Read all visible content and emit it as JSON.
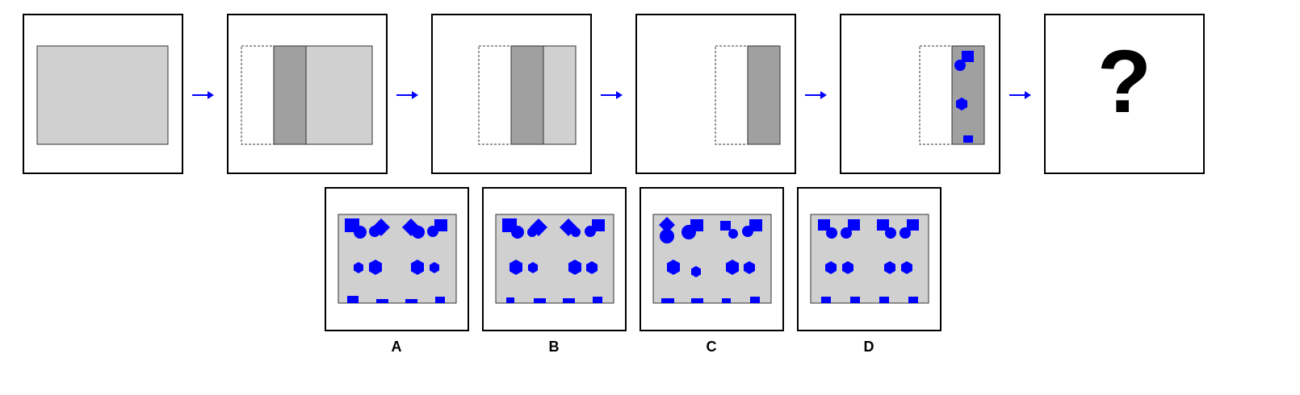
{
  "question_mark": "?",
  "colors": {
    "panel": "#d0d0d0",
    "strip": "#a0a0a0",
    "shape": "#0000ff",
    "arrow": "#0000ff"
  },
  "sequence": [
    {
      "step": 1,
      "desc_icon": "full-gray-panel"
    },
    {
      "step": 2,
      "desc_icon": "panel-with-dashed-left-dark-strip-light-right"
    },
    {
      "step": 3,
      "desc_icon": "panel-dashed-left-dark-strip-narrow-light"
    },
    {
      "step": 4,
      "desc_icon": "panel-dashed-left-dark-strip"
    },
    {
      "step": 5,
      "desc_icon": "panel-dashed-left-dark-strip-with-blue-shapes"
    },
    {
      "step": 6,
      "desc_icon": "question-mark"
    }
  ],
  "options": [
    {
      "label": "A"
    },
    {
      "label": "B"
    },
    {
      "label": "C"
    },
    {
      "label": "D"
    }
  ]
}
